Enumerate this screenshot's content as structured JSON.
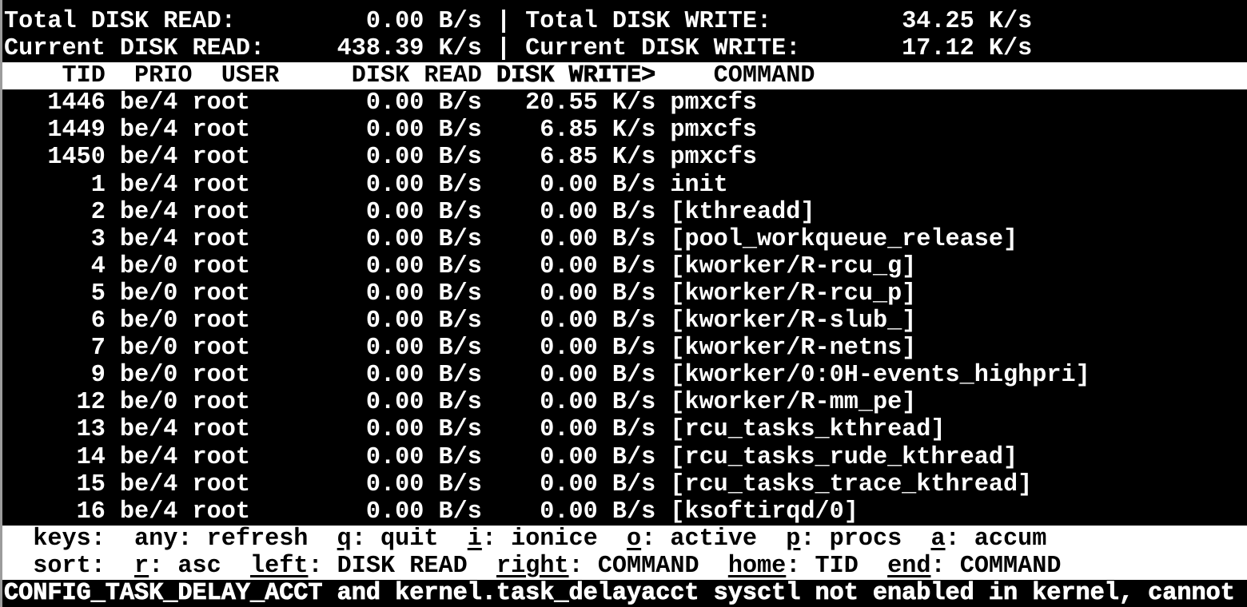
{
  "app_title": "iotop",
  "colors": {
    "background": "#000000",
    "foreground": "#ffffff",
    "inverse_background": "#ffffff",
    "inverse_foreground": "#000000",
    "left_edge": "#9c9c9c"
  },
  "summary": {
    "total_read_label": "Total DISK READ:",
    "total_read_value": "0.00 B/s",
    "total_write_label": "Total DISK WRITE:",
    "total_write_value": "34.25 K/s",
    "current_read_label": "Current DISK READ:",
    "current_read_value": "438.39 K/s",
    "current_write_label": "Current DISK WRITE:",
    "current_write_value": "17.12 K/s",
    "separator": "|"
  },
  "table": {
    "header_pre": "    TID  PRIO  USER     DISK READ ",
    "sort_column": "DISK WRITE>",
    "header_post": "    COMMAND",
    "columns": [
      "TID",
      "PRIO",
      "USER",
      "DISK READ",
      "DISK WRITE",
      "COMMAND"
    ],
    "sorted_by": "DISK WRITE",
    "processes": [
      {
        "tid": "1446",
        "prio": "be/4",
        "user": "root",
        "disk_read": "0.00 B/s",
        "disk_write": "20.55 K/s",
        "command": "pmxcfs"
      },
      {
        "tid": "1449",
        "prio": "be/4",
        "user": "root",
        "disk_read": "0.00 B/s",
        "disk_write": "6.85 K/s",
        "command": "pmxcfs"
      },
      {
        "tid": "1450",
        "prio": "be/4",
        "user": "root",
        "disk_read": "0.00 B/s",
        "disk_write": "6.85 K/s",
        "command": "pmxcfs"
      },
      {
        "tid": "1",
        "prio": "be/4",
        "user": "root",
        "disk_read": "0.00 B/s",
        "disk_write": "0.00 B/s",
        "command": "init"
      },
      {
        "tid": "2",
        "prio": "be/4",
        "user": "root",
        "disk_read": "0.00 B/s",
        "disk_write": "0.00 B/s",
        "command": "[kthreadd]"
      },
      {
        "tid": "3",
        "prio": "be/4",
        "user": "root",
        "disk_read": "0.00 B/s",
        "disk_write": "0.00 B/s",
        "command": "[pool_workqueue_release]"
      },
      {
        "tid": "4",
        "prio": "be/0",
        "user": "root",
        "disk_read": "0.00 B/s",
        "disk_write": "0.00 B/s",
        "command": "[kworker/R-rcu_g]"
      },
      {
        "tid": "5",
        "prio": "be/0",
        "user": "root",
        "disk_read": "0.00 B/s",
        "disk_write": "0.00 B/s",
        "command": "[kworker/R-rcu_p]"
      },
      {
        "tid": "6",
        "prio": "be/0",
        "user": "root",
        "disk_read": "0.00 B/s",
        "disk_write": "0.00 B/s",
        "command": "[kworker/R-slub_]"
      },
      {
        "tid": "7",
        "prio": "be/0",
        "user": "root",
        "disk_read": "0.00 B/s",
        "disk_write": "0.00 B/s",
        "command": "[kworker/R-netns]"
      },
      {
        "tid": "9",
        "prio": "be/0",
        "user": "root",
        "disk_read": "0.00 B/s",
        "disk_write": "0.00 B/s",
        "command": "[kworker/0:0H-events_highpri]"
      },
      {
        "tid": "12",
        "prio": "be/0",
        "user": "root",
        "disk_read": "0.00 B/s",
        "disk_write": "0.00 B/s",
        "command": "[kworker/R-mm_pe]"
      },
      {
        "tid": "13",
        "prio": "be/4",
        "user": "root",
        "disk_read": "0.00 B/s",
        "disk_write": "0.00 B/s",
        "command": "[rcu_tasks_kthread]"
      },
      {
        "tid": "14",
        "prio": "be/4",
        "user": "root",
        "disk_read": "0.00 B/s",
        "disk_write": "0.00 B/s",
        "command": "[rcu_tasks_rude_kthread]"
      },
      {
        "tid": "15",
        "prio": "be/4",
        "user": "root",
        "disk_read": "0.00 B/s",
        "disk_write": "0.00 B/s",
        "command": "[rcu_tasks_trace_kthread]"
      },
      {
        "tid": "16",
        "prio": "be/4",
        "user": "root",
        "disk_read": "0.00 B/s",
        "disk_write": "0.00 B/s",
        "command": "[ksoftirqd/0]"
      }
    ]
  },
  "help": {
    "keys_segments": [
      {
        "t": "  keys:  any: refresh  ",
        "u": false
      },
      {
        "t": "q",
        "u": true
      },
      {
        "t": ": quit  ",
        "u": false
      },
      {
        "t": "i",
        "u": true
      },
      {
        "t": ": ionice  ",
        "u": false
      },
      {
        "t": "o",
        "u": true
      },
      {
        "t": ": active  ",
        "u": false
      },
      {
        "t": "p",
        "u": true
      },
      {
        "t": ": procs  ",
        "u": false
      },
      {
        "t": "a",
        "u": true
      },
      {
        "t": ": accum",
        "u": false
      }
    ],
    "sort_segments": [
      {
        "t": "  sort:  ",
        "u": false
      },
      {
        "t": "r",
        "u": true
      },
      {
        "t": ": asc  ",
        "u": false
      },
      {
        "t": "left",
        "u": true
      },
      {
        "t": ": DISK READ  ",
        "u": false
      },
      {
        "t": "right",
        "u": true
      },
      {
        "t": ": COMMAND  ",
        "u": false
      },
      {
        "t": "home",
        "u": true
      },
      {
        "t": ": TID  ",
        "u": false
      },
      {
        "t": "end",
        "u": true
      },
      {
        "t": ": COMMAND",
        "u": false
      }
    ]
  },
  "status_line": "CONFIG_TASK_DELAY_ACCT and kernel.task_delayacct sysctl not enabled in kernel, cannot"
}
